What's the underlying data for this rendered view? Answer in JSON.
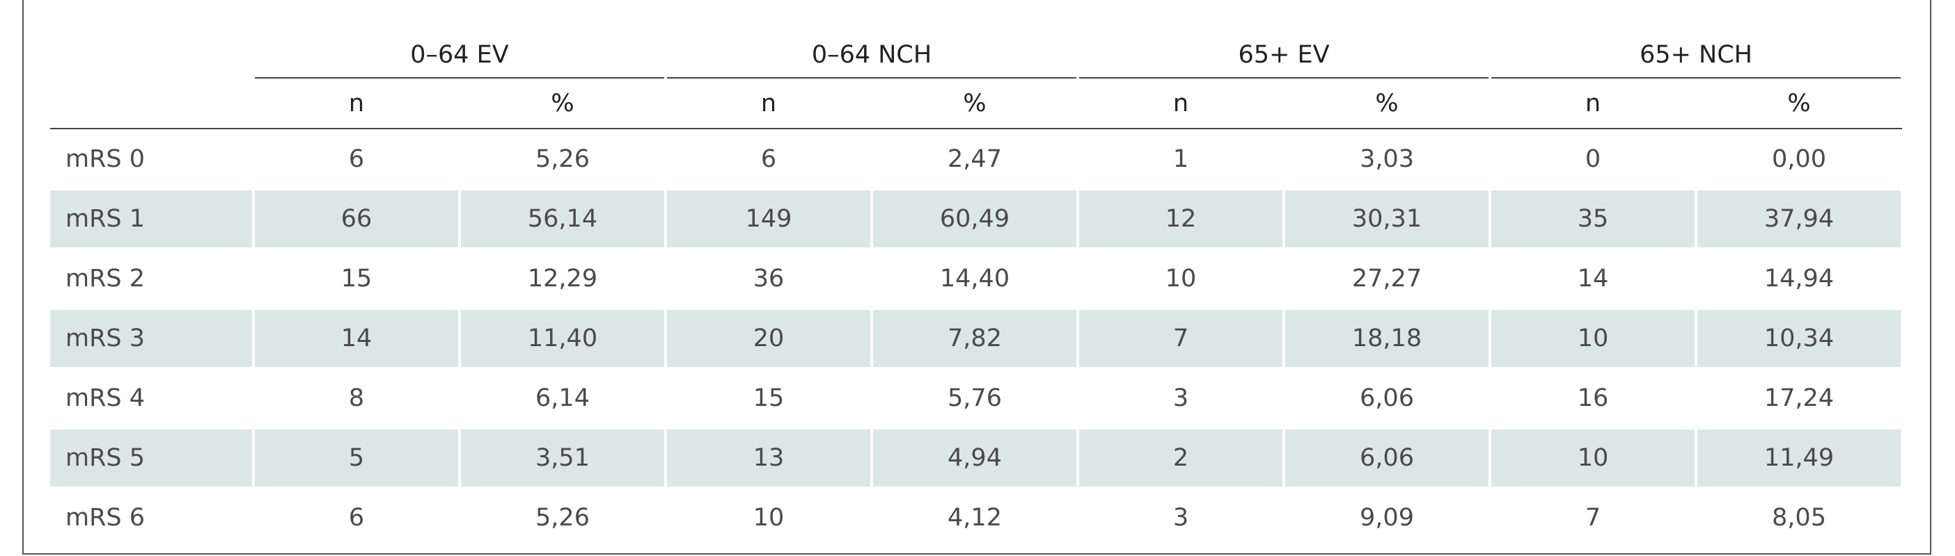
{
  "table": {
    "groups": [
      "0–64 EV",
      "0–64 NCH",
      "65+ EV",
      "65+ NCH"
    ],
    "subheaders": [
      "n",
      "%",
      "n",
      "%",
      "n",
      "%",
      "n",
      "%"
    ],
    "rows": [
      [
        "mRS 0",
        "6",
        "5,26",
        "6",
        "2,47",
        "1",
        "3,03",
        "0",
        "0,00"
      ],
      [
        "mRS 1",
        "66",
        "56,14",
        "149",
        "60,49",
        "12",
        "30,31",
        "35",
        "37,94"
      ],
      [
        "mRS 2",
        "15",
        "12,29",
        "36",
        "14,40",
        "10",
        "27,27",
        "14",
        "14,94"
      ],
      [
        "mRS 3",
        "14",
        "11,40",
        "20",
        "7,82",
        "7",
        "18,18",
        "10",
        "10,34"
      ],
      [
        "mRS 4",
        "8",
        "6,14",
        "15",
        "5,76",
        "3",
        "6,06",
        "16",
        "17,24"
      ],
      [
        "mRS 5",
        "5",
        "3,51",
        "13",
        "4,94",
        "2",
        "6,06",
        "10",
        "11,49"
      ],
      [
        "mRS 6",
        "6",
        "5,26",
        "10",
        "4,12",
        "3",
        "9,09",
        "7",
        "8,05"
      ]
    ]
  }
}
